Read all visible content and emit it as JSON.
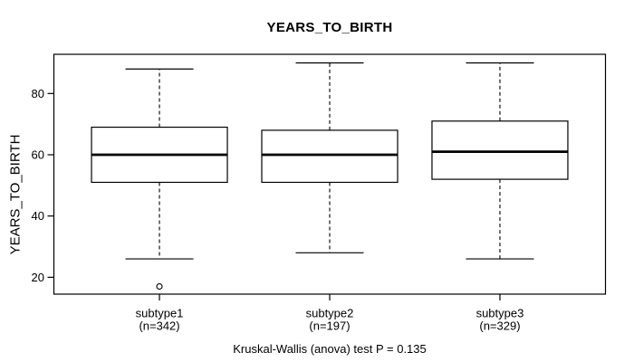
{
  "figure": {
    "background": "#ffffff",
    "foreground": "#000000"
  },
  "chart_data": {
    "type": "boxplot",
    "title": "YEARS_TO_BIRTH",
    "ylabel": "YEARS_TO_BIRTH",
    "xlabel": "",
    "caption": "Kruskal-Wallis (anova) test P = 0.135",
    "categories": [
      "subtype1",
      "subtype2",
      "subtype3"
    ],
    "category_sublabels": [
      "(n=342)",
      "(n=197)",
      "(n=329)"
    ],
    "series": [
      {
        "name": "subtype1",
        "n": 342,
        "whisker_low": 26,
        "q1": 51,
        "median": 60,
        "q3": 69,
        "whisker_high": 88,
        "outliers": [
          17
        ]
      },
      {
        "name": "subtype2",
        "n": 197,
        "whisker_low": 28,
        "q1": 51,
        "median": 60,
        "q3": 68,
        "whisker_high": 90,
        "outliers": []
      },
      {
        "name": "subtype3",
        "n": 329,
        "whisker_low": 26,
        "q1": 52,
        "median": 61,
        "q3": 71,
        "whisker_high": 90,
        "outliers": []
      }
    ],
    "yticks": [
      20,
      40,
      60,
      80
    ],
    "ylim": [
      14.5,
      92.8
    ],
    "grid": false,
    "legend": "none",
    "box_fill": "#ffffff",
    "box_color": "#000000",
    "median_color": "#000000",
    "whisker_style": "dashed"
  }
}
